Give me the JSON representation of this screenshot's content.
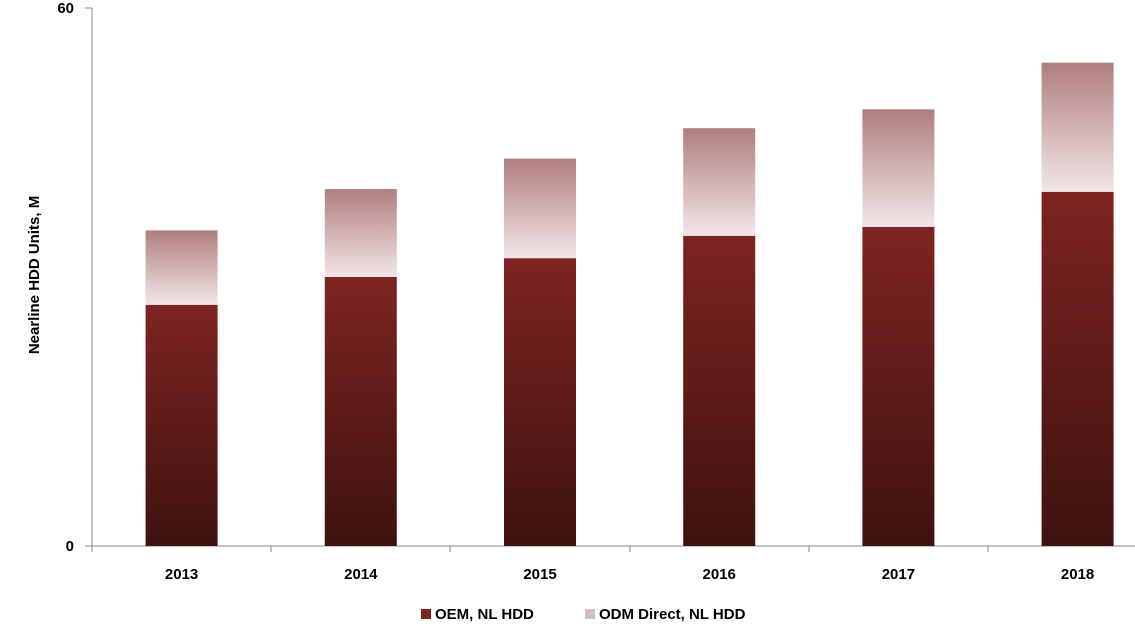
{
  "chart_data": {
    "type": "bar",
    "stacked": true,
    "categories": [
      "2013",
      "2014",
      "2015",
      "2016",
      "2017",
      "2018"
    ],
    "series": [
      {
        "name": "OEM, NL HDD",
        "values": [
          26.9,
          30.0,
          32.1,
          34.6,
          35.6,
          39.5
        ],
        "color": "#7a2320"
      },
      {
        "name": "ODM Direct, NL HDD",
        "values": [
          8.3,
          9.8,
          11.1,
          12.0,
          13.1,
          14.4
        ],
        "color": "#c99d9d"
      }
    ],
    "ylabel": "Nearline HDD Units, M",
    "xlabel": "",
    "ylim": [
      0,
      60
    ],
    "y_ticks": [
      "0",
      "60"
    ],
    "grid": false,
    "legend_position": "bottom"
  }
}
